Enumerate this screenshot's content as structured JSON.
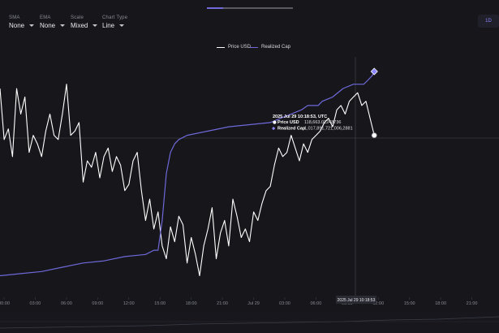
{
  "toolbar": {
    "controls": [
      {
        "label": "SMA",
        "value": "None"
      },
      {
        "label": "EMA",
        "value": "None"
      },
      {
        "label": "Scale",
        "value": "Mixed"
      },
      {
        "label": "Chart Type",
        "value": "Line"
      }
    ],
    "range_button": "1D"
  },
  "colors": {
    "background": "#16161b",
    "price": "#ffffff",
    "realized_cap": "#6f69d9",
    "accent": "#8b84ff"
  },
  "tooltip": {
    "timestamp": "2025 Jul 29 10:18:53, UTC",
    "rows": [
      {
        "label": "Price USD",
        "value": "118,663.01248736"
      },
      {
        "label": "Realized Cap",
        "value": "1,017,891,721,006,2881"
      }
    ]
  },
  "crosshair_label": "2025 Jul 29 10:18:53",
  "chart_data": {
    "type": "line",
    "legend": [
      "Price USD",
      "Realized Cap"
    ],
    "legend_position": "top-center",
    "grid": false,
    "x_ticks": [
      "00:00",
      "03:00",
      "06:00",
      "09:00",
      "12:00",
      "15:00",
      "18:00",
      "21:00",
      "Jul 29",
      "03:00",
      "06:00",
      "09:00",
      "12:00",
      "15:00",
      "18:00",
      "21:00"
    ],
    "xlim": [
      0,
      48
    ],
    "ylim": [
      0,
      100
    ],
    "series": [
      {
        "name": "Price USD",
        "x": [
          0,
          0.4,
          0.8,
          1.2,
          1.6,
          2,
          2.4,
          2.8,
          3.2,
          3.6,
          4,
          4.4,
          4.8,
          5.2,
          5.6,
          6,
          6.4,
          6.8,
          7.2,
          7.6,
          8,
          8.4,
          8.8,
          9.2,
          9.6,
          10,
          10.4,
          10.8,
          11.2,
          11.6,
          12,
          12.4,
          12.8,
          13.2,
          13.6,
          14,
          14.4,
          14.8,
          15.2,
          15.6,
          16,
          16.4,
          16.8,
          17.2,
          17.6,
          18,
          18.4,
          18.8,
          19.2,
          19.6,
          20,
          20.4,
          20.8,
          21.2,
          21.6,
          22,
          22.4,
          22.8,
          23.2,
          23.6,
          24,
          24.4,
          24.8,
          25.2,
          25.6,
          26,
          26.4,
          26.8,
          27.2,
          27.6,
          28,
          28.4,
          28.8,
          29.2,
          29.6,
          30,
          30.4,
          30.8,
          31.2,
          31.6,
          32,
          32.4,
          32.8,
          33.2,
          33.6,
          34,
          34.4,
          34.8,
          35.2,
          35.6,
          36
        ],
        "values": [
          92,
          68,
          73,
          60,
          92,
          80,
          88,
          62,
          70,
          66,
          60,
          72,
          80,
          70,
          68,
          80,
          94,
          70,
          72,
          76,
          48,
          58,
          55,
          62,
          50,
          60,
          64,
          53,
          60,
          56,
          44,
          47,
          58,
          62,
          44,
          30,
          40,
          26,
          34,
          18,
          12,
          27,
          20,
          32,
          28,
          10,
          22,
          14,
          4,
          18,
          26,
          36,
          12,
          24,
          30,
          18,
          40,
          32,
          22,
          26,
          20,
          34,
          30,
          38,
          44,
          46,
          56,
          64,
          60,
          62,
          70,
          64,
          58,
          66,
          62,
          68,
          70,
          72,
          76,
          78,
          74,
          82,
          84,
          80,
          86,
          88,
          90,
          84,
          86,
          78,
          70
        ]
      },
      {
        "name": "Realized Cap",
        "x": [
          0,
          2,
          4,
          6,
          8,
          10,
          12,
          14,
          14.8,
          15.2,
          15.6,
          16,
          16.4,
          16.8,
          17.2,
          18,
          20,
          22,
          24,
          26,
          27,
          28,
          29,
          29.6,
          30.6,
          31,
          32,
          33,
          34,
          35,
          35.4,
          35.8,
          36
        ],
        "values": [
          4,
          5,
          6,
          8,
          10,
          11,
          13,
          14,
          16,
          16,
          30,
          52,
          62,
          66,
          68,
          70,
          72,
          74,
          75,
          76,
          78,
          80,
          82,
          84,
          84,
          86,
          88,
          92,
          94,
          94,
          96,
          98,
          100
        ]
      }
    ],
    "tooltip_timestamp": "2025 Jul 29 10:18:53, UTC",
    "tooltip_values": {
      "Price USD": "118,663.01248736",
      "Realized Cap": "1,017,891,721,006,2881"
    }
  }
}
